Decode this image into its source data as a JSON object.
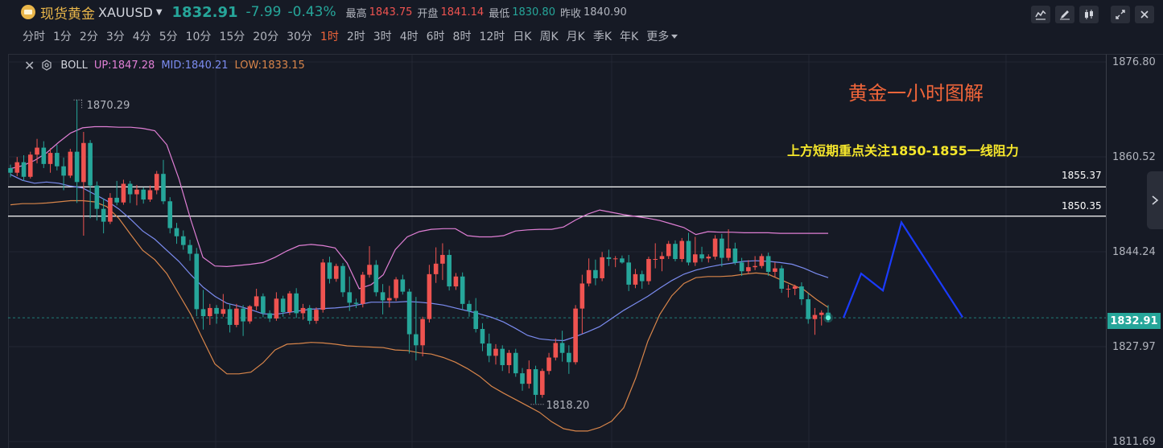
{
  "quote": {
    "name": "现货黄金",
    "symbol": "XAUUSD",
    "price": "1832.91",
    "change": "-7.99",
    "change_pct": "-0.43%",
    "high_label": "最高",
    "high": "1843.75",
    "open_label": "开盘",
    "open": "1841.14",
    "low_label": "最低",
    "low": "1830.80",
    "prev_close_label": "昨收",
    "prev_close": "1840.90",
    "icon": "gold-coin-icon"
  },
  "toolbar": {
    "icons": [
      "indicator-icon",
      "draw-icon",
      "candle-type-icon",
      "fullscreen-icon",
      "close-icon"
    ]
  },
  "periods": [
    {
      "label": "分时",
      "active": false
    },
    {
      "label": "1分",
      "active": false
    },
    {
      "label": "2分",
      "active": false
    },
    {
      "label": "3分",
      "active": false
    },
    {
      "label": "4分",
      "active": false
    },
    {
      "label": "5分",
      "active": false
    },
    {
      "label": "10分",
      "active": false
    },
    {
      "label": "15分",
      "active": false
    },
    {
      "label": "20分",
      "active": false
    },
    {
      "label": "30分",
      "active": false
    },
    {
      "label": "1时",
      "active": true
    },
    {
      "label": "2时",
      "active": false
    },
    {
      "label": "3时",
      "active": false
    },
    {
      "label": "4时",
      "active": false
    },
    {
      "label": "6时",
      "active": false
    },
    {
      "label": "8时",
      "active": false
    },
    {
      "label": "12时",
      "active": false
    },
    {
      "label": "日K",
      "active": false
    },
    {
      "label": "周K",
      "active": false
    },
    {
      "label": "月K",
      "active": false
    },
    {
      "label": "季K",
      "active": false
    },
    {
      "label": "年K",
      "active": false
    },
    {
      "label": "更多",
      "active": false,
      "more": true
    }
  ],
  "legend": {
    "indicator": "BOLL",
    "up": "UP:1847.28",
    "mid": "MID:1840.21",
    "low": "LOW:1833.15"
  },
  "annotations": {
    "title": "黄金一小时图解",
    "note": "上方短期重点关注1850-1855一线阻力"
  },
  "colors": {
    "up": "#ef5350",
    "down": "#26a69a",
    "boll_up": "#e07fd5",
    "boll_mid": "#7b8cf0",
    "boll_low": "#d8854a",
    "projection": "#1a3bff",
    "accent": "#f0653a"
  },
  "chart_data": {
    "type": "candlestick",
    "symbol": "XAUUSD",
    "timeframe": "1时",
    "y_axis_ticks": [
      "1876.80",
      "1860.52",
      "1844.24",
      "1827.97",
      "1811.69"
    ],
    "ylim": [
      1811.69,
      1876.8
    ],
    "horizontal_lines": [
      {
        "value": 1855.37,
        "label": "1855.37"
      },
      {
        "value": 1850.35,
        "label": "1850.35"
      }
    ],
    "current_price": {
      "value": 1832.91,
      "label": "1832.91"
    },
    "extremes": [
      {
        "label": "1870.29",
        "value": 1870.29,
        "kind": "high"
      },
      {
        "label": "1818.20",
        "value": 1818.2,
        "kind": "low"
      }
    ],
    "candles": [
      [
        1858.6,
        1859.2,
        1857.0,
        1857.8
      ],
      [
        1857.8,
        1860.5,
        1857.2,
        1859.6
      ],
      [
        1859.6,
        1860.8,
        1856.4,
        1857.1
      ],
      [
        1857.1,
        1861.4,
        1856.8,
        1860.9
      ],
      [
        1860.9,
        1863.6,
        1859.4,
        1862.1
      ],
      [
        1862.1,
        1863.2,
        1858.6,
        1859.3
      ],
      [
        1859.3,
        1862.0,
        1857.8,
        1861.2
      ],
      [
        1861.2,
        1862.6,
        1858.2,
        1858.9
      ],
      [
        1858.9,
        1860.4,
        1854.8,
        1857.3
      ],
      [
        1857.3,
        1861.9,
        1856.9,
        1861.4
      ],
      [
        1861.4,
        1870.3,
        1852.6,
        1856.2
      ],
      [
        1856.2,
        1864.8,
        1847.0,
        1862.9
      ],
      [
        1862.9,
        1863.4,
        1850.0,
        1855.6
      ],
      [
        1855.6,
        1856.3,
        1849.6,
        1851.6
      ],
      [
        1851.6,
        1853.4,
        1847.4,
        1849.4
      ],
      [
        1849.4,
        1854.3,
        1849.0,
        1853.5
      ],
      [
        1853.5,
        1856.4,
        1852.2,
        1852.7
      ],
      [
        1852.7,
        1856.6,
        1852.3,
        1855.9
      ],
      [
        1855.9,
        1856.4,
        1852.6,
        1854.1
      ],
      [
        1854.1,
        1855.7,
        1852.2,
        1854.9
      ],
      [
        1854.9,
        1855.3,
        1852.5,
        1853.2
      ],
      [
        1853.2,
        1855.6,
        1852.8,
        1854.8
      ],
      [
        1854.8,
        1858.1,
        1854.1,
        1857.6
      ],
      [
        1857.6,
        1860.0,
        1852.4,
        1852.9
      ],
      [
        1852.9,
        1853.6,
        1847.4,
        1848.3
      ],
      [
        1848.3,
        1849.2,
        1845.6,
        1846.9
      ],
      [
        1846.9,
        1847.9,
        1844.6,
        1845.4
      ],
      [
        1845.4,
        1846.3,
        1842.7,
        1843.9
      ],
      [
        1843.9,
        1844.9,
        1833.2,
        1834.4
      ],
      [
        1834.4,
        1837.7,
        1830.9,
        1833.2
      ],
      [
        1833.2,
        1835.3,
        1831.7,
        1834.6
      ],
      [
        1834.6,
        1835.1,
        1831.9,
        1833.6
      ],
      [
        1833.6,
        1837.0,
        1833.1,
        1834.4
      ],
      [
        1834.4,
        1835.3,
        1830.4,
        1831.7
      ],
      [
        1831.7,
        1835.3,
        1831.3,
        1834.5
      ],
      [
        1834.5,
        1835.1,
        1829.8,
        1832.3
      ],
      [
        1832.3,
        1835.1,
        1831.9,
        1834.9
      ],
      [
        1834.9,
        1837.9,
        1834.2,
        1836.6
      ],
      [
        1836.6,
        1837.1,
        1833.0,
        1833.7
      ],
      [
        1833.7,
        1834.2,
        1832.2,
        1832.8
      ],
      [
        1832.8,
        1837.3,
        1832.4,
        1836.2
      ],
      [
        1836.2,
        1836.7,
        1833.1,
        1833.9
      ],
      [
        1833.9,
        1837.5,
        1833.4,
        1837.1
      ],
      [
        1837.1,
        1838.0,
        1832.9,
        1833.7
      ],
      [
        1833.7,
        1835.3,
        1832.6,
        1834.6
      ],
      [
        1834.6,
        1835.1,
        1831.8,
        1832.4
      ],
      [
        1832.4,
        1834.7,
        1831.9,
        1834.3
      ],
      [
        1834.3,
        1843.0,
        1833.8,
        1842.4
      ],
      [
        1842.4,
        1843.4,
        1838.8,
        1839.6
      ],
      [
        1839.6,
        1842.2,
        1839.1,
        1841.8
      ],
      [
        1841.8,
        1842.3,
        1836.5,
        1837.3
      ],
      [
        1837.3,
        1840.0,
        1834.1,
        1835.5
      ],
      [
        1835.5,
        1836.2,
        1834.6,
        1835.3
      ],
      [
        1835.3,
        1840.8,
        1834.7,
        1840.3
      ],
      [
        1840.3,
        1845.2,
        1839.8,
        1842.0
      ],
      [
        1842.0,
        1842.8,
        1836.6,
        1837.3
      ],
      [
        1837.3,
        1838.7,
        1833.5,
        1835.9
      ],
      [
        1835.9,
        1838.4,
        1834.7,
        1836.3
      ],
      [
        1836.3,
        1839.9,
        1835.8,
        1839.5
      ],
      [
        1839.5,
        1840.3,
        1836.9,
        1837.4
      ],
      [
        1837.4,
        1837.9,
        1826.8,
        1830.1
      ],
      [
        1830.1,
        1836.5,
        1825.6,
        1828.2
      ],
      [
        1828.2,
        1833.1,
        1826.3,
        1832.7
      ],
      [
        1832.7,
        1842.0,
        1832.1,
        1840.4
      ],
      [
        1840.4,
        1845.0,
        1838.9,
        1842.2
      ],
      [
        1842.2,
        1845.7,
        1839.4,
        1843.7
      ],
      [
        1843.7,
        1844.6,
        1837.6,
        1838.3
      ],
      [
        1838.3,
        1840.6,
        1837.7,
        1840.0
      ],
      [
        1840.0,
        1840.7,
        1834.3,
        1835.3
      ],
      [
        1835.3,
        1835.9,
        1833.1,
        1834.1
      ],
      [
        1834.1,
        1836.3,
        1830.4,
        1831.0
      ],
      [
        1831.0,
        1832.0,
        1827.2,
        1828.5
      ],
      [
        1828.5,
        1830.2,
        1825.3,
        1826.4
      ],
      [
        1826.4,
        1828.4,
        1824.9,
        1827.6
      ],
      [
        1827.6,
        1828.2,
        1823.8,
        1824.8
      ],
      [
        1824.8,
        1827.4,
        1823.4,
        1826.9
      ],
      [
        1826.9,
        1827.6,
        1822.8,
        1823.4
      ],
      [
        1823.4,
        1824.3,
        1820.4,
        1821.6
      ],
      [
        1821.6,
        1825.6,
        1820.8,
        1824.1
      ],
      [
        1824.1,
        1824.7,
        1818.2,
        1819.7
      ],
      [
        1819.7,
        1824.2,
        1819.2,
        1823.8
      ],
      [
        1823.8,
        1826.9,
        1823.2,
        1826.1
      ],
      [
        1826.1,
        1829.4,
        1825.6,
        1828.6
      ],
      [
        1828.6,
        1830.7,
        1825.4,
        1826.9
      ],
      [
        1826.9,
        1828.2,
        1823.3,
        1825.3
      ],
      [
        1825.3,
        1835.1,
        1824.9,
        1834.5
      ],
      [
        1834.5,
        1840.3,
        1830.2,
        1838.8
      ],
      [
        1838.8,
        1843.1,
        1838.3,
        1841.1
      ],
      [
        1841.1,
        1842.9,
        1838.5,
        1839.7
      ],
      [
        1839.7,
        1844.2,
        1839.2,
        1843.3
      ],
      [
        1843.3,
        1844.6,
        1841.8,
        1843.0
      ],
      [
        1843.0,
        1843.5,
        1841.6,
        1843.1
      ],
      [
        1843.1,
        1843.6,
        1842.2,
        1842.4
      ],
      [
        1842.4,
        1843.7,
        1837.5,
        1838.6
      ],
      [
        1838.6,
        1841.3,
        1838.0,
        1840.4
      ],
      [
        1840.4,
        1841.0,
        1837.9,
        1839.2
      ],
      [
        1839.2,
        1843.4,
        1838.6,
        1843.0
      ],
      [
        1843.0,
        1845.7,
        1841.4,
        1843.0
      ],
      [
        1843.0,
        1844.2,
        1840.9,
        1843.5
      ],
      [
        1843.5,
        1846.1,
        1843.0,
        1845.6
      ],
      [
        1845.6,
        1846.2,
        1842.6,
        1843.0
      ],
      [
        1843.0,
        1846.6,
        1842.5,
        1846.1
      ],
      [
        1846.1,
        1847.5,
        1841.9,
        1842.4
      ],
      [
        1842.4,
        1846.8,
        1841.8,
        1843.8
      ],
      [
        1843.8,
        1845.1,
        1842.5,
        1843.1
      ],
      [
        1843.1,
        1843.8,
        1842.4,
        1843.4
      ],
      [
        1843.4,
        1847.1,
        1842.9,
        1846.5
      ],
      [
        1846.5,
        1847.3,
        1841.7,
        1843.2
      ],
      [
        1843.2,
        1848.1,
        1842.7,
        1844.8
      ],
      [
        1844.8,
        1845.8,
        1842.0,
        1842.4
      ],
      [
        1842.4,
        1843.2,
        1840.1,
        1840.9
      ],
      [
        1840.9,
        1842.8,
        1840.4,
        1841.6
      ],
      [
        1841.6,
        1843.5,
        1841.1,
        1841.8
      ],
      [
        1841.8,
        1843.9,
        1841.4,
        1843.5
      ],
      [
        1843.5,
        1844.1,
        1840.1,
        1840.8
      ],
      [
        1840.8,
        1842.4,
        1839.9,
        1841.4
      ],
      [
        1841.4,
        1841.9,
        1837.2,
        1837.9
      ],
      [
        1837.9,
        1838.6,
        1836.4,
        1837.9
      ],
      [
        1837.9,
        1838.6,
        1836.8,
        1838.3
      ],
      [
        1838.3,
        1839.0,
        1835.1,
        1836.1
      ],
      [
        1836.1,
        1837.1,
        1831.9,
        1832.7
      ],
      [
        1832.7,
        1834.6,
        1830.0,
        1833.4
      ],
      [
        1833.4,
        1834.2,
        1831.6,
        1833.8
      ],
      [
        1833.8,
        1835.1,
        1832.2,
        1832.9
      ]
    ],
    "boll_up": [
      1858.5,
      1859.0,
      1859.9,
      1861.2,
      1863.0,
      1864.6,
      1865.5,
      1865.7,
      1865.7,
      1865.6,
      1865.6,
      1865.4,
      1865.0,
      1862.6,
      1856.8,
      1849.7,
      1843.3,
      1841.8,
      1841.7,
      1841.9,
      1842.1,
      1842.4,
      1843.3,
      1844.4,
      1845.3,
      1845.5,
      1845.3,
      1844.9,
      1842.3,
      1837.9,
      1838.6,
      1840.3,
      1844.6,
      1846.8,
      1847.7,
      1848.1,
      1848.2,
      1848.2,
      1847.0,
      1846.8,
      1846.8,
      1847.0,
      1847.8,
      1848.0,
      1848.1,
      1848.1,
      1848.5,
      1849.7,
      1850.7,
      1851.4,
      1851.0,
      1850.6,
      1850.3,
      1850.0,
      1849.6,
      1849.0,
      1848.4,
      1847.2,
      1847.7,
      1847.6,
      1847.6,
      1847.5,
      1847.5,
      1847.5,
      1847.4,
      1847.4,
      1847.4,
      1847.4,
      1847.4
    ],
    "boll_mid": [
      1857.5,
      1856.5,
      1856.0,
      1856.2,
      1856.0,
      1855.5,
      1855.2,
      1854.1,
      1853.0,
      1851.6,
      1849.8,
      1847.8,
      1846.4,
      1844.5,
      1842.6,
      1840.3,
      1838.2,
      1836.6,
      1835.4,
      1834.9,
      1834.3,
      1833.6,
      1833.5,
      1833.8,
      1834.1,
      1834.4,
      1834.5,
      1834.6,
      1834.8,
      1835.2,
      1835.6,
      1835.6,
      1835.6,
      1835.7,
      1835.6,
      1835.4,
      1835.1,
      1834.6,
      1834.1,
      1833.6,
      1833.0,
      1832.2,
      1831.1,
      1829.9,
      1829.3,
      1829.1,
      1829.0,
      1829.7,
      1830.5,
      1831.4,
      1832.8,
      1834.2,
      1835.4,
      1836.6,
      1838.0,
      1839.3,
      1840.4,
      1841.1,
      1841.6,
      1842.0,
      1842.3,
      1842.6,
      1842.7,
      1842.6,
      1842.4,
      1842.1,
      1841.4,
      1840.5,
      1839.8
    ],
    "boll_low": [
      1852.3,
      1852.5,
      1852.5,
      1852.6,
      1852.8,
      1853.0,
      1853.0,
      1852.8,
      1852.0,
      1850.0,
      1847.2,
      1844.5,
      1842.9,
      1840.5,
      1837.0,
      1833.5,
      1829.2,
      1825.0,
      1823.3,
      1823.3,
      1823.6,
      1825.2,
      1827.4,
      1828.4,
      1828.5,
      1828.7,
      1828.6,
      1828.4,
      1828.1,
      1828.0,
      1827.9,
      1827.8,
      1827.4,
      1827.3,
      1826.9,
      1826.7,
      1826.1,
      1825.3,
      1824.2,
      1822.9,
      1821.2,
      1820.0,
      1818.9,
      1817.8,
      1816.7,
      1815.1,
      1813.9,
      1813.5,
      1813.5,
      1814.1,
      1815.2,
      1817.5,
      1822.6,
      1828.9,
      1833.5,
      1836.7,
      1838.8,
      1839.8,
      1840.0,
      1840.0,
      1840.1,
      1840.4,
      1840.6,
      1840.4,
      1839.5,
      1838.6,
      1837.7,
      1836.1,
      1834.7
    ],
    "projection_line": [
      1832.9,
      1840.5,
      1837.6,
      1849.3,
      1833.0
    ]
  }
}
